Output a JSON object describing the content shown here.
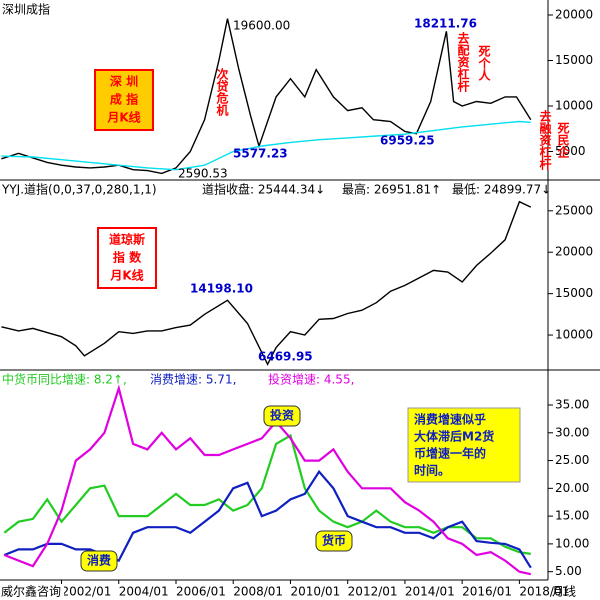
{
  "chart_data": [
    {
      "type": "line",
      "title": "深圳成指",
      "box": [
        "深  圳",
        "成  指",
        "月K线"
      ],
      "xlim": [
        1999.85,
        2019
      ],
      "ylim": [
        1868,
        21650
      ],
      "yticks": [
        5000,
        10000,
        15000,
        20000
      ],
      "series": [
        {
          "color": "#000000",
          "x": [
            1999.9,
            2000.5,
            2001.0,
            2001.5,
            2002.0,
            2002.5,
            2003.0,
            2003.5,
            2004.0,
            2004.5,
            2005.0,
            2005.5,
            2006.0,
            2006.5,
            2007.0,
            2007.5,
            2007.8,
            2008.2,
            2008.6,
            2008.9,
            2009.5,
            2010.0,
            2010.5,
            2010.9,
            2011.5,
            2012.0,
            2012.5,
            2012.9,
            2013.5,
            2014.0,
            2014.4,
            2014.9,
            2015.45,
            2015.7,
            2016.0,
            2016.5,
            2017.0,
            2017.5,
            2017.9,
            2018.2,
            2018.4
          ],
          "values": [
            4200,
            4800,
            4300,
            3800,
            3500,
            3300,
            3200,
            3300,
            3500,
            3000,
            2900,
            2590.53,
            3200,
            5000,
            8500,
            15000,
            19600,
            14000,
            9000,
            5577.23,
            11000,
            13000,
            11000,
            14000,
            11000,
            9500,
            9800,
            8500,
            8300,
            7200,
            6959.25,
            10500,
            18211.76,
            10500,
            10000,
            10500,
            10300,
            11000,
            11000,
            9500,
            8500
          ]
        },
        {
          "color": "#00e0f0",
          "x": [
            1999.9,
            2001,
            2002,
            2003,
            2004,
            2005,
            2006,
            2007,
            2008,
            2009,
            2010,
            2011,
            2012,
            2013,
            2014,
            2015,
            2016,
            2017,
            2018,
            2018.4
          ],
          "values": [
            4500,
            4400,
            4100,
            3800,
            3500,
            3200,
            3000,
            3500,
            5000,
            5600,
            6000,
            6300,
            6500,
            6700,
            6900,
            7300,
            7700,
            8000,
            8300,
            8200
          ]
        }
      ],
      "annotations": [
        "19600.00",
        "2590.53",
        "5577.23",
        "6959.25",
        "18211.76"
      ],
      "notes": [
        "次贷危机",
        "去配资杠杆",
        "死个人",
        "去融资杠杆",
        "死民企"
      ]
    },
    {
      "type": "line",
      "header": [
        "YYJ.道指(0,0,37,0,280,1,1)",
        "道指收盘: 25444.34↓",
        "最高: 26951.81↑",
        "最低: 24899.77↓"
      ],
      "box": [
        "道琼斯",
        "指  数",
        "月K线"
      ],
      "xlim": [
        1999.85,
        2019
      ],
      "ylim": [
        5780,
        28720
      ],
      "yticks": [
        10000,
        15000,
        20000,
        25000
      ],
      "series": [
        {
          "color": "#000000",
          "x": [
            1999.9,
            2000.5,
            2001.0,
            2001.5,
            2002.0,
            2002.5,
            2002.8,
            2003.5,
            2004.0,
            2004.5,
            2005.0,
            2005.5,
            2006.0,
            2006.5,
            2007.0,
            2007.8,
            2008.5,
            2009.2,
            2009.5,
            2010.0,
            2010.5,
            2011.0,
            2011.5,
            2012.0,
            2012.5,
            2013.0,
            2013.5,
            2014.0,
            2014.5,
            2015.0,
            2015.5,
            2016.0,
            2016.5,
            2017.0,
            2017.5,
            2018.0,
            2018.4
          ],
          "values": [
            11000,
            10500,
            10800,
            10300,
            9800,
            8700,
            7500,
            9000,
            10400,
            10200,
            10500,
            10500,
            10900,
            11200,
            12500,
            14198.1,
            11400,
            6469.95,
            8500,
            10400,
            10000,
            11900,
            12000,
            12600,
            13000,
            13900,
            15300,
            16000,
            16900,
            17800,
            17600,
            16400,
            18400,
            19900,
            21500,
            26100,
            25444.34
          ]
        }
      ],
      "annotations": [
        "14198.10",
        "6469.95"
      ]
    },
    {
      "type": "line",
      "header": [
        "中货币同比增速: 8.2↑,",
        "消费增速: 5.71,",
        "投资增速: 4.55,"
      ],
      "note": [
        "消费增速似乎",
        "大体滞后M2货",
        "币增速一年的",
        "时间。"
      ],
      "watermark": "威尔鑫咨询",
      "xlabel": "月线",
      "xlim": [
        1999.85,
        2019
      ],
      "ylim": [
        3.5,
        41.3
      ],
      "xticks": [
        {
          "value": 2002,
          "label": "2002/01"
        },
        {
          "value": 2004,
          "label": "2004/01"
        },
        {
          "value": 2006,
          "label": "2006/01"
        },
        {
          "value": 2008,
          "label": "2008/01"
        },
        {
          "value": 2010,
          "label": "2010/01"
        },
        {
          "value": 2012,
          "label": "2012/01"
        },
        {
          "value": 2014,
          "label": "2014/01"
        },
        {
          "value": 2016,
          "label": "2016/01"
        },
        {
          "value": 2018,
          "label": "2018/01"
        }
      ],
      "yticks": [
        {
          "value": 5,
          "label": "5.00"
        },
        {
          "value": 10,
          "label": "10.00"
        },
        {
          "value": 15,
          "label": "15.00"
        },
        {
          "value": 20,
          "label": "20.00"
        },
        {
          "value": 25,
          "label": "25.00"
        },
        {
          "value": 30,
          "label": "30.00"
        },
        {
          "value": 35,
          "label": "35.00"
        }
      ],
      "x": [
        2000,
        2000.5,
        2001,
        2001.5,
        2002,
        2002.5,
        2003,
        2003.5,
        2004,
        2004.5,
        2005,
        2005.5,
        2006,
        2006.5,
        2007,
        2007.5,
        2008,
        2008.5,
        2009,
        2009.5,
        2010,
        2010.5,
        2011,
        2011.5,
        2012,
        2012.5,
        2013,
        2013.5,
        2014,
        2014.5,
        2015,
        2015.5,
        2016,
        2016.5,
        2017,
        2017.5,
        2018,
        2018.4
      ],
      "series": [
        {
          "name": "货币",
          "color": "#22cc22",
          "values": [
            12,
            14,
            14.5,
            18,
            14,
            17,
            20,
            20.5,
            15,
            15,
            15,
            17,
            19,
            17,
            17,
            18,
            16,
            17,
            20,
            28,
            29.5,
            20,
            16,
            14,
            13,
            14,
            16,
            14,
            13,
            13,
            12,
            13,
            13,
            11,
            11,
            9.5,
            8.5,
            8.2
          ]
        },
        {
          "name": "消费",
          "color": "#1020c0",
          "values": [
            8,
            9,
            9,
            10,
            10,
            9,
            9,
            8,
            7,
            12,
            13,
            13,
            13,
            12,
            14,
            16,
            20,
            21,
            15,
            16,
            18,
            19,
            23,
            20,
            15,
            14,
            13,
            13,
            12,
            12,
            11,
            13,
            14,
            10.5,
            10.2,
            10,
            9,
            5.71
          ]
        },
        {
          "name": "投资",
          "color": "#e000e0",
          "values": [
            8,
            7,
            6,
            10,
            16,
            25,
            27,
            30,
            38,
            28,
            27,
            30,
            27,
            29,
            26,
            26,
            27,
            28,
            29,
            32,
            29,
            25,
            25,
            27,
            23,
            20,
            20,
            20,
            17.5,
            16,
            14,
            11,
            10,
            8,
            8.5,
            7,
            5,
            4.55
          ]
        }
      ]
    }
  ]
}
